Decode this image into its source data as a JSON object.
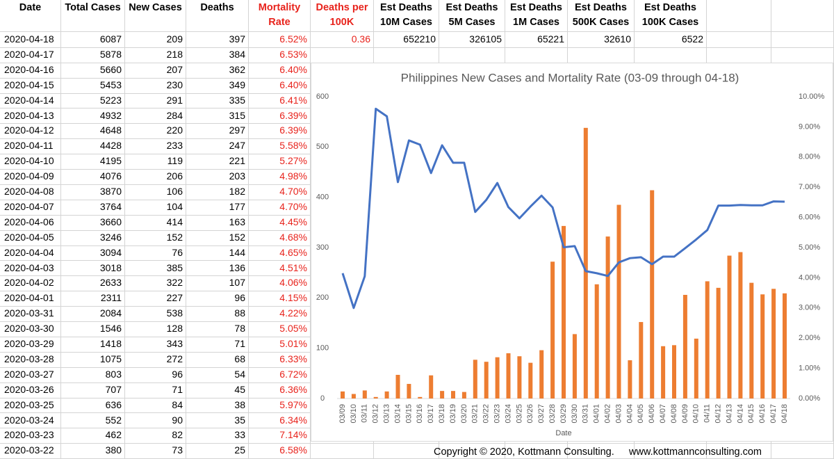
{
  "table": {
    "header": [
      [
        "Date"
      ],
      [
        "Total Cases"
      ],
      [
        "New Cases"
      ],
      [
        "Deaths"
      ],
      [
        "Mortality",
        "Rate"
      ],
      [
        "Deaths per",
        "100K"
      ],
      [
        "Est Deaths",
        "10M Cases"
      ],
      [
        "Est Deaths",
        "5M Cases"
      ],
      [
        "Est Deaths",
        "1M Cases"
      ],
      [
        "Est Deaths",
        "500K Cases"
      ],
      [
        "Est Deaths",
        "100K Cases"
      ]
    ],
    "rows": [
      [
        "2020-04-18",
        6087,
        209,
        397,
        "6.52%",
        0.36,
        652210,
        326105,
        65221,
        32610,
        6522
      ],
      [
        "2020-04-17",
        5878,
        218,
        384,
        "6.53%"
      ],
      [
        "2020-04-16",
        5660,
        207,
        362,
        "6.40%"
      ],
      [
        "2020-04-15",
        5453,
        230,
        349,
        "6.40%"
      ],
      [
        "2020-04-14",
        5223,
        291,
        335,
        "6.41%"
      ],
      [
        "2020-04-13",
        4932,
        284,
        315,
        "6.39%"
      ],
      [
        "2020-04-12",
        4648,
        220,
        297,
        "6.39%"
      ],
      [
        "2020-04-11",
        4428,
        233,
        247,
        "5.58%"
      ],
      [
        "2020-04-10",
        4195,
        119,
        221,
        "5.27%"
      ],
      [
        "2020-04-09",
        4076,
        206,
        203,
        "4.98%"
      ],
      [
        "2020-04-08",
        3870,
        106,
        182,
        "4.70%"
      ],
      [
        "2020-04-07",
        3764,
        104,
        177,
        "4.70%"
      ],
      [
        "2020-04-06",
        3660,
        414,
        163,
        "4.45%"
      ],
      [
        "2020-04-05",
        3246,
        152,
        152,
        "4.68%"
      ],
      [
        "2020-04-04",
        3094,
        76,
        144,
        "4.65%"
      ],
      [
        "2020-04-03",
        3018,
        385,
        136,
        "4.51%"
      ],
      [
        "2020-04-02",
        2633,
        322,
        107,
        "4.06%"
      ],
      [
        "2020-04-01",
        2311,
        227,
        96,
        "4.15%"
      ],
      [
        "2020-03-31",
        2084,
        538,
        88,
        "4.22%"
      ],
      [
        "2020-03-30",
        1546,
        128,
        78,
        "5.05%"
      ],
      [
        "2020-03-29",
        1418,
        343,
        71,
        "5.01%"
      ],
      [
        "2020-03-28",
        1075,
        272,
        68,
        "6.33%"
      ],
      [
        "2020-03-27",
        803,
        96,
        54,
        "6.72%"
      ],
      [
        "2020-03-26",
        707,
        71,
        45,
        "6.36%"
      ],
      [
        "2020-03-25",
        636,
        84,
        38,
        "5.97%"
      ],
      [
        "2020-03-24",
        552,
        90,
        35,
        "6.34%"
      ],
      [
        "2020-03-23",
        462,
        82,
        33,
        "7.14%"
      ],
      [
        "2020-03-22",
        380,
        73,
        25,
        "6.58%"
      ]
    ]
  },
  "chart_data": {
    "type": "combo",
    "title": "Philippines New Cases and Mortality Rate (03-09 through 04-18)",
    "x_label": "Date",
    "categories": [
      "03/09",
      "03/10",
      "03/11",
      "03/12",
      "03/13",
      "03/14",
      "03/15",
      "03/16",
      "03/17",
      "03/18",
      "03/19",
      "03/20",
      "03/21",
      "03/22",
      "03/23",
      "03/24",
      "03/25",
      "03/26",
      "03/27",
      "03/28",
      "03/29",
      "03/30",
      "03/31",
      "04/01",
      "04/02",
      "04/03",
      "04/04",
      "04/05",
      "04/06",
      "04/07",
      "04/08",
      "04/09",
      "04/10",
      "04/11",
      "04/12",
      "04/13",
      "04/14",
      "04/15",
      "04/16",
      "04/17",
      "04/18"
    ],
    "series": [
      {
        "type": "bar",
        "color": "#ed7d31",
        "values": [
          14,
          9,
          16,
          3,
          14,
          47,
          29,
          3,
          46,
          15,
          15,
          13,
          77,
          73,
          82,
          90,
          84,
          71,
          96,
          272,
          343,
          128,
          538,
          227,
          322,
          385,
          76,
          152,
          414,
          104,
          106,
          206,
          119,
          233,
          220,
          284,
          291,
          230,
          207,
          218,
          209
        ]
      },
      {
        "type": "line",
        "axis": "y2",
        "color": "#4472c4",
        "values": [
          4.15,
          3.0,
          4.05,
          9.6,
          9.35,
          7.17,
          8.55,
          8.41,
          7.47,
          8.39,
          7.81,
          7.81,
          6.18,
          6.58,
          7.14,
          6.34,
          5.97,
          6.36,
          6.72,
          6.33,
          5.01,
          5.05,
          4.22,
          4.15,
          4.06,
          4.51,
          4.65,
          4.68,
          4.45,
          4.7,
          4.7,
          4.98,
          5.27,
          5.58,
          6.39,
          6.39,
          6.41,
          6.4,
          6.4,
          6.53,
          6.52
        ]
      }
    ],
    "ylim": [
      0,
      600
    ],
    "yticks": [
      0,
      100,
      200,
      300,
      400,
      500,
      600
    ],
    "y2lim": [
      0,
      10
    ],
    "y2ticks": [
      {
        "value": 0,
        "label": "0.00%"
      },
      {
        "value": 1,
        "label": "1.00%"
      },
      {
        "value": 2,
        "label": "2.00%"
      },
      {
        "value": 3,
        "label": "3.00%"
      },
      {
        "value": 4,
        "label": "4.00%"
      },
      {
        "value": 5,
        "label": "5.00%"
      },
      {
        "value": 6,
        "label": "6.00%"
      },
      {
        "value": 7,
        "label": "7.00%"
      },
      {
        "value": 8,
        "label": "8.00%"
      },
      {
        "value": 9,
        "label": "9.00%"
      },
      {
        "value": 10,
        "label": "10.00%"
      }
    ],
    "grid": false
  },
  "footer": {
    "copyright": "Copyright © 2020, Kottmann Consulting.",
    "website": "www.kottmannconsulting.com"
  }
}
